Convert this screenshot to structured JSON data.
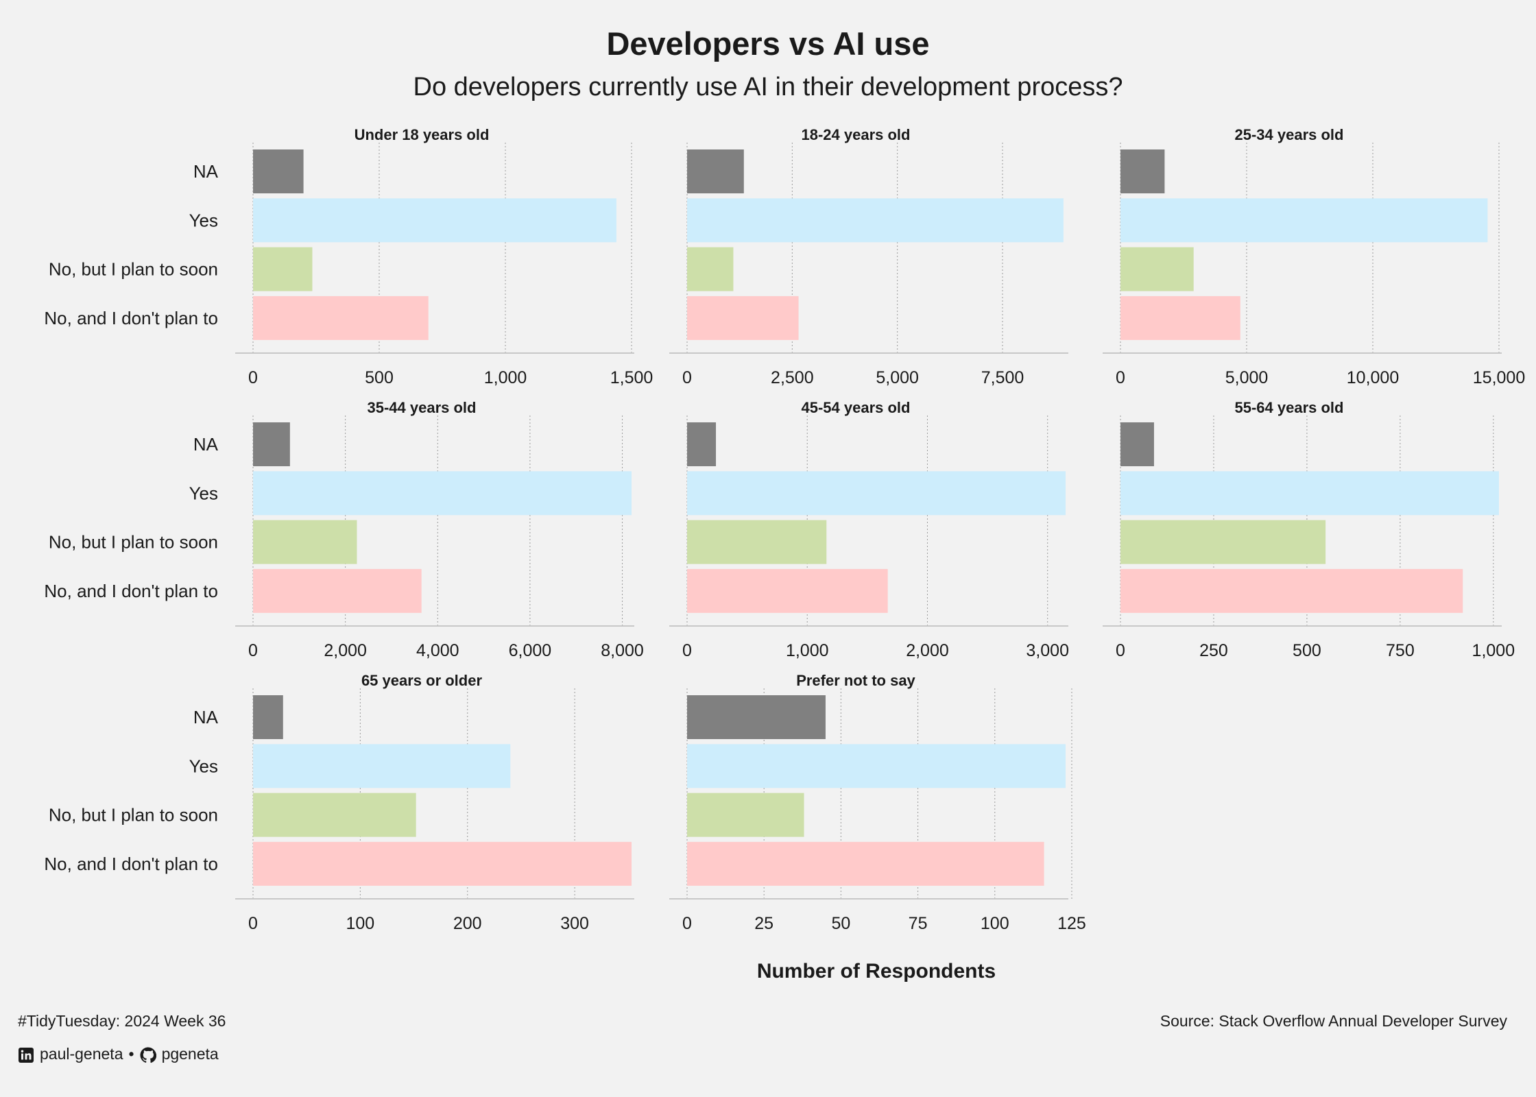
{
  "header": {
    "title": "Developers vs AI use",
    "subtitle": "Do developers currently use AI in their development process?"
  },
  "footer": {
    "caption_left": "#TidyTuesday: 2024 Week 36",
    "caption_right": "Source: Stack Overflow Annual Developer Survey",
    "linkedin_handle": "paul-geneta",
    "separator": "•",
    "github_handle": "pgeneta",
    "linkedin_icon": "linkedin-icon",
    "github_icon": "github-icon"
  },
  "chart_data": {
    "type": "bar",
    "orientation": "horizontal",
    "xlabel": "Number of Respondents",
    "ylabel": "",
    "categories": [
      "NA",
      "Yes",
      "No, but I plan to soon",
      "No, and I don't plan to"
    ],
    "colors": {
      "NA": "#808080",
      "Yes": "#cdedfc",
      "No, but I plan to soon": "#cddfa9",
      "No, and I don't plan to": "#ffcaca"
    },
    "grid": "vertical-dotted",
    "legend": "none",
    "facets": [
      {
        "title": "Under 18 years old",
        "values": [
          200,
          1440,
          235,
          695
        ],
        "xlim": [
          0,
          1500
        ],
        "ticks": [
          0,
          500,
          1000,
          1500
        ],
        "tick_labels": [
          "0",
          "500",
          "1,000",
          "1,500"
        ]
      },
      {
        "title": "18-24 years old",
        "values": [
          1350,
          8950,
          1100,
          2650
        ],
        "xlim": [
          0,
          9000
        ],
        "ticks": [
          0,
          2500,
          5000,
          7500
        ],
        "tick_labels": [
          "0",
          "2,500",
          "5,000",
          "7,500"
        ]
      },
      {
        "title": "25-34 years old",
        "values": [
          1750,
          14550,
          2900,
          4750
        ],
        "xlim": [
          0,
          15000
        ],
        "ticks": [
          0,
          5000,
          10000,
          15000
        ],
        "tick_labels": [
          "0",
          "5,000",
          "10,000",
          "15,000"
        ]
      },
      {
        "title": "35-44 years old",
        "values": [
          800,
          8200,
          2250,
          3650
        ],
        "xlim": [
          0,
          8200
        ],
        "ticks": [
          0,
          2000,
          4000,
          6000,
          8000
        ],
        "tick_labels": [
          "0",
          "2,000",
          "4,000",
          "6,000",
          "8,000"
        ]
      },
      {
        "title": "45-54 years old",
        "values": [
          240,
          3150,
          1160,
          1670
        ],
        "xlim": [
          0,
          3150
        ],
        "ticks": [
          0,
          1000,
          2000,
          3000
        ],
        "tick_labels": [
          "0",
          "1,000",
          "2,000",
          "3,000"
        ]
      },
      {
        "title": "55-64 years old",
        "values": [
          90,
          1015,
          550,
          918
        ],
        "xlim": [
          0,
          1015
        ],
        "ticks": [
          0,
          250,
          500,
          750,
          1000
        ],
        "tick_labels": [
          "0",
          "250",
          "500",
          "750",
          "1,000"
        ]
      },
      {
        "title": "65 years or older",
        "values": [
          28,
          240,
          152,
          353
        ],
        "xlim": [
          0,
          353
        ],
        "ticks": [
          0,
          100,
          200,
          300
        ],
        "tick_labels": [
          "0",
          "100",
          "200",
          "300"
        ]
      },
      {
        "title": "Prefer not to say",
        "values": [
          45,
          123,
          38,
          116
        ],
        "xlim": [
          0,
          123
        ],
        "ticks": [
          0,
          25,
          50,
          75,
          100,
          125
        ],
        "tick_labels": [
          "0",
          "25",
          "50",
          "75",
          "100",
          "125"
        ]
      }
    ]
  }
}
